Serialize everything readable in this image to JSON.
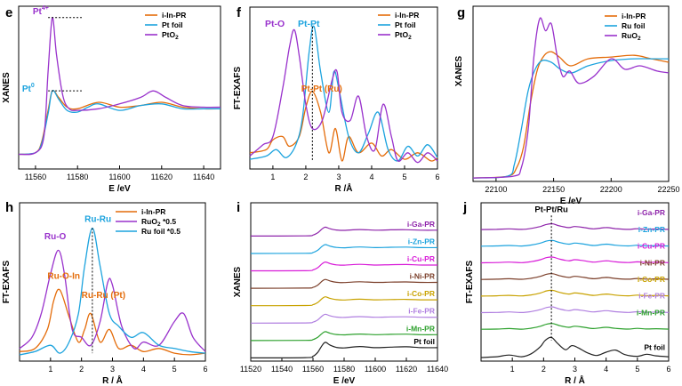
{
  "colors": {
    "orange": "#E46C0A",
    "blue": "#1CA3DE",
    "purple": "#9932CC",
    "black": "#222222"
  },
  "chart_data": [
    {
      "panel": "e",
      "type": "line",
      "xlabel": "E /eV",
      "ylabel": "XANES",
      "xlim": [
        11552,
        11648
      ],
      "ylim": [
        0,
        1
      ],
      "xticks": [
        "11560",
        "11580",
        "11600",
        "11620",
        "11640"
      ],
      "xtick_values": [
        11560,
        11580,
        11600,
        11620,
        11640
      ],
      "legend": [
        "i-In-PR",
        "Pt foil",
        "PtO2"
      ],
      "annotations": [
        {
          "id": "pt4",
          "text": "Pt",
          "sup": "4+",
          "color": "purple",
          "x": 11568,
          "y": 0.93
        },
        {
          "id": "pt0",
          "text": "Pt",
          "sup": "0",
          "color": "blue",
          "x": 11568,
          "y": 0.48
        }
      ],
      "series": [
        {
          "name": "i-In-PR",
          "color": "orange",
          "x": [
            11552,
            11560,
            11563,
            11566,
            11568,
            11571,
            11575,
            11580,
            11590,
            11600,
            11610,
            11620,
            11630,
            11640,
            11648
          ],
          "y": [
            0.09,
            0.1,
            0.17,
            0.36,
            0.48,
            0.44,
            0.38,
            0.37,
            0.41,
            0.38,
            0.39,
            0.41,
            0.38,
            0.37,
            0.37
          ]
        },
        {
          "name": "Pt foil",
          "color": "blue",
          "x": [
            11552,
            11560,
            11563,
            11566,
            11568,
            11571,
            11575,
            11580,
            11585,
            11590,
            11600,
            11610,
            11620,
            11630,
            11640,
            11648
          ],
          "y": [
            0.09,
            0.1,
            0.16,
            0.34,
            0.48,
            0.43,
            0.36,
            0.35,
            0.38,
            0.4,
            0.36,
            0.39,
            0.4,
            0.37,
            0.37,
            0.37
          ]
        },
        {
          "name": "PtO2",
          "color": "purple",
          "x": [
            11552,
            11560,
            11564,
            11566,
            11568,
            11570,
            11573,
            11576,
            11580,
            11590,
            11600,
            11610,
            11616,
            11622,
            11630,
            11640,
            11648
          ],
          "y": [
            0.09,
            0.1,
            0.2,
            0.6,
            0.93,
            0.7,
            0.45,
            0.37,
            0.36,
            0.37,
            0.4,
            0.44,
            0.48,
            0.44,
            0.39,
            0.38,
            0.38
          ]
        }
      ]
    },
    {
      "panel": "f",
      "type": "line",
      "xlabel": "R /Å",
      "ylabel": "FT-EXAFS",
      "xlim": [
        0.3,
        6
      ],
      "ylim": [
        0,
        1
      ],
      "xticks": [
        "1",
        "2",
        "3",
        "4",
        "5",
        "6"
      ],
      "xtick_values": [
        1,
        2,
        3,
        4,
        5,
        6
      ],
      "legend": [
        "i-In-PR",
        "Pt foil",
        "PtO2"
      ],
      "annotations": [
        {
          "id": "pto",
          "text": "Pt-O",
          "color": "purple",
          "x": 1.3,
          "y": 0.9
        },
        {
          "id": "ptpt",
          "text": "Pt-Pt",
          "color": "blue",
          "x": 2.3,
          "y": 0.9
        },
        {
          "id": "ptptru",
          "text": "Pt-Pt (Ru)",
          "color": "orange",
          "x": 2.4,
          "y": 0.5
        }
      ],
      "series": [
        {
          "name": "i-In-PR",
          "color": "orange",
          "x": [
            0.3,
            0.8,
            1.0,
            1.3,
            1.5,
            1.8,
            2.0,
            2.2,
            2.45,
            2.7,
            2.9,
            3.1,
            3.3,
            3.6,
            4.0,
            4.3,
            4.6,
            5.0,
            5.4,
            5.8,
            6.0
          ],
          "y": [
            0.1,
            0.12,
            0.18,
            0.2,
            0.14,
            0.2,
            0.38,
            0.48,
            0.35,
            0.1,
            0.25,
            0.05,
            0.2,
            0.1,
            0.16,
            0.08,
            0.12,
            0.06,
            0.1,
            0.05,
            0.07
          ]
        },
        {
          "name": "Pt foil",
          "color": "blue",
          "x": [
            0.3,
            0.8,
            1.1,
            1.4,
            1.7,
            1.9,
            2.1,
            2.25,
            2.45,
            2.7,
            2.85,
            3.0,
            3.3,
            3.6,
            3.9,
            4.2,
            4.5,
            4.8,
            5.1,
            5.4,
            5.7,
            6.0
          ],
          "y": [
            0.06,
            0.08,
            0.12,
            0.07,
            0.15,
            0.32,
            0.72,
            0.88,
            0.6,
            0.35,
            0.6,
            0.5,
            0.2,
            0.1,
            0.22,
            0.35,
            0.12,
            0.05,
            0.14,
            0.08,
            0.15,
            0.07
          ]
        },
        {
          "name": "PtO2",
          "color": "purple",
          "x": [
            0.3,
            0.7,
            1.0,
            1.3,
            1.5,
            1.65,
            1.8,
            2.0,
            2.2,
            2.5,
            2.8,
            2.95,
            3.1,
            3.35,
            3.6,
            3.85,
            4.1,
            4.35,
            4.6,
            4.8,
            5.1,
            5.4,
            5.7,
            6.0
          ],
          "y": [
            0.08,
            0.15,
            0.2,
            0.5,
            0.75,
            0.86,
            0.7,
            0.4,
            0.25,
            0.3,
            0.55,
            0.6,
            0.35,
            0.3,
            0.45,
            0.2,
            0.12,
            0.4,
            0.2,
            0.05,
            0.1,
            0.04,
            0.1,
            0.05
          ]
        }
      ]
    },
    {
      "panel": "g",
      "type": "line",
      "xlabel": "E /eV",
      "ylabel": "XANES",
      "xlim": [
        22080,
        22250
      ],
      "ylim": [
        0,
        1
      ],
      "xticks": [
        "22100",
        "22150",
        "22200",
        "22250"
      ],
      "xtick_values": [
        22100,
        22150,
        22200,
        22250
      ],
      "legend": [
        "i-In-PR",
        "Ru foil",
        "RuO2"
      ],
      "series": [
        {
          "name": "i-In-PR",
          "color": "orange",
          "x": [
            22080,
            22110,
            22118,
            22124,
            22130,
            22136,
            22142,
            22148,
            22155,
            22165,
            22180,
            22200,
            22220,
            22235,
            22250
          ],
          "y": [
            0.02,
            0.03,
            0.08,
            0.2,
            0.45,
            0.64,
            0.72,
            0.74,
            0.71,
            0.66,
            0.7,
            0.71,
            0.72,
            0.7,
            0.68
          ]
        },
        {
          "name": "Ru foil",
          "color": "blue",
          "x": [
            22080,
            22110,
            22116,
            22122,
            22128,
            22134,
            22140,
            22148,
            22156,
            22166,
            22180,
            22200,
            22220,
            22235,
            22250
          ],
          "y": [
            0.02,
            0.03,
            0.1,
            0.3,
            0.52,
            0.64,
            0.69,
            0.68,
            0.64,
            0.62,
            0.66,
            0.69,
            0.7,
            0.7,
            0.7
          ]
        },
        {
          "name": "RuO2",
          "color": "purple",
          "x": [
            22080,
            22115,
            22122,
            22128,
            22133,
            22138,
            22143,
            22148,
            22153,
            22158,
            22164,
            22172,
            22185,
            22200,
            22212,
            22225,
            22240,
            22250
          ],
          "y": [
            0.02,
            0.03,
            0.08,
            0.3,
            0.72,
            0.93,
            0.86,
            0.9,
            0.72,
            0.6,
            0.63,
            0.56,
            0.6,
            0.7,
            0.64,
            0.66,
            0.63,
            0.62
          ]
        }
      ]
    },
    {
      "panel": "h",
      "type": "line",
      "xlabel": "R / Å",
      "ylabel": "FT-EXAFS",
      "xlim": [
        0,
        6
      ],
      "ylim": [
        0,
        1
      ],
      "xticks": [
        "1",
        "2",
        "3",
        "4",
        "5",
        "6"
      ],
      "xtick_values": [
        1,
        2,
        3,
        4,
        5,
        6
      ],
      "legend": [
        "i-In-PR",
        "RuO2 *0.5",
        "Ru foil  *0.5"
      ],
      "annotations": [
        {
          "id": "ruo",
          "text": "Ru-O",
          "color": "purple",
          "x": 0.8,
          "y": 0.77
        },
        {
          "id": "ruru",
          "text": "Ru-Ru",
          "color": "blue",
          "x": 2.1,
          "y": 0.88
        },
        {
          "id": "ruoin",
          "text": "Ru-O-In",
          "color": "orange",
          "x": 0.9,
          "y": 0.52
        },
        {
          "id": "rurupt",
          "text": "Ru-Ru (Pt)",
          "color": "orange",
          "x": 2.0,
          "y": 0.4
        }
      ],
      "series": [
        {
          "name": "i-In-PR",
          "color": "orange",
          "x": [
            0,
            0.5,
            0.9,
            1.1,
            1.3,
            1.6,
            1.9,
            2.1,
            2.3,
            2.6,
            2.9,
            3.2,
            3.6,
            4.0,
            4.5,
            5.0,
            5.5,
            6.0
          ],
          "y": [
            0.06,
            0.08,
            0.2,
            0.38,
            0.45,
            0.28,
            0.12,
            0.2,
            0.3,
            0.12,
            0.2,
            0.08,
            0.1,
            0.06,
            0.08,
            0.05,
            0.04,
            0.05
          ]
        },
        {
          "name": "RuO2 *0.5",
          "color": "purple",
          "x": [
            0,
            0.4,
            0.7,
            1.0,
            1.25,
            1.45,
            1.7,
            2.0,
            2.3,
            2.6,
            2.85,
            3.0,
            3.3,
            3.7,
            4.0,
            4.5,
            5.0,
            5.3,
            5.6,
            6.0
          ],
          "y": [
            0.08,
            0.15,
            0.3,
            0.55,
            0.7,
            0.55,
            0.2,
            0.15,
            0.1,
            0.25,
            0.5,
            0.48,
            0.22,
            0.08,
            0.12,
            0.1,
            0.25,
            0.3,
            0.15,
            0.06
          ]
        },
        {
          "name": "Ru foil  *0.5",
          "color": "blue",
          "x": [
            0,
            0.5,
            1.0,
            1.3,
            1.6,
            1.9,
            2.1,
            2.35,
            2.6,
            2.9,
            3.2,
            3.6,
            4.0,
            4.5,
            5.0,
            5.5,
            6.0
          ],
          "y": [
            0.04,
            0.06,
            0.1,
            0.05,
            0.12,
            0.3,
            0.6,
            0.84,
            0.6,
            0.3,
            0.22,
            0.15,
            0.18,
            0.1,
            0.08,
            0.06,
            0.05
          ]
        }
      ]
    },
    {
      "panel": "i",
      "type": "line",
      "xlabel": "E /eV",
      "ylabel": "XANES",
      "xlim": [
        11520,
        11640
      ],
      "ylim": [
        0,
        1
      ],
      "xticks": [
        "11520",
        "11540",
        "11560",
        "11580",
        "11600",
        "11620",
        "11640"
      ],
      "xtick_values": [
        11520,
        11540,
        11560,
        11580,
        11600,
        11620,
        11640
      ],
      "series": [
        {
          "name": "i-Ga-PR",
          "color": "#8E24AA"
        },
        {
          "name": "i-Zn-PR",
          "color": "#1CA3DE"
        },
        {
          "name": "i-Cu-PR",
          "color": "#D81BD8"
        },
        {
          "name": "i-Ni-PR",
          "color": "#7B3F2A"
        },
        {
          "name": "i-Co-PR",
          "color": "#C8A200"
        },
        {
          "name": "i-Fe-PR",
          "color": "#B07FE0"
        },
        {
          "name": "i-Mn-PR",
          "color": "#2CA02C"
        },
        {
          "name": "Pt foil",
          "color": "#222222"
        }
      ],
      "profile_x": [
        11520,
        11555,
        11560,
        11563,
        11566,
        11568,
        11571,
        11575,
        11580,
        11590,
        11600,
        11610,
        11620,
        11630,
        11640
      ],
      "profile_y": [
        0,
        0.01,
        0.06,
        0.2,
        0.46,
        0.56,
        0.46,
        0.38,
        0.36,
        0.41,
        0.37,
        0.39,
        0.4,
        0.37,
        0.37
      ]
    },
    {
      "panel": "j",
      "type": "line",
      "xlabel": "R / Å",
      "ylabel": "FT-EXAFS",
      "xlim": [
        0,
        6
      ],
      "ylim": [
        0,
        1
      ],
      "xticks": [
        "1",
        "2",
        "3",
        "4",
        "5",
        "6"
      ],
      "xtick_values": [
        1,
        2,
        3,
        4,
        5,
        6
      ],
      "annotation": "Pt-Pt/Ru",
      "series": [
        {
          "name": "i-Ga-PR",
          "color": "#8E24AA"
        },
        {
          "name": "i-Zn-PR",
          "color": "#1CA3DE"
        },
        {
          "name": "i-Cu-PR",
          "color": "#D81BD8"
        },
        {
          "name": "i-Ni-PR",
          "color": "#7B3F2A"
        },
        {
          "name": "i-Co-PR",
          "color": "#C8A200"
        },
        {
          "name": "i-Fe-PR",
          "color": "#B07FE0"
        },
        {
          "name": "i-Mn-PR",
          "color": "#2CA02C"
        },
        {
          "name": "Pt foil",
          "color": "#222222"
        }
      ],
      "profile_x": [
        0,
        0.5,
        0.9,
        1.3,
        1.6,
        1.9,
        2.1,
        2.3,
        2.5,
        2.8,
        3.0,
        3.3,
        3.6,
        4.0,
        4.3,
        4.7,
        5.0,
        5.3,
        5.6,
        6.0
      ],
      "profile_y": [
        0.02,
        0.05,
        0.12,
        0.04,
        0.18,
        0.45,
        0.75,
        0.82,
        0.55,
        0.3,
        0.45,
        0.3,
        0.12,
        0.3,
        0.15,
        0.05,
        0.15,
        0.06,
        0.1,
        0.04
      ],
      "pt_foil_x": [
        0,
        0.5,
        0.9,
        1.3,
        1.6,
        1.9,
        2.05,
        2.25,
        2.45,
        2.7,
        2.9,
        3.1,
        3.4,
        3.7,
        4.0,
        4.3,
        4.6,
        5.0,
        5.3,
        5.6,
        6.0
      ],
      "pt_foil_y": [
        0.02,
        0.06,
        0.14,
        0.06,
        0.2,
        0.55,
        0.85,
        1.0,
        0.7,
        0.4,
        0.6,
        0.5,
        0.25,
        0.12,
        0.28,
        0.38,
        0.16,
        0.08,
        0.18,
        0.1,
        0.06
      ]
    }
  ]
}
